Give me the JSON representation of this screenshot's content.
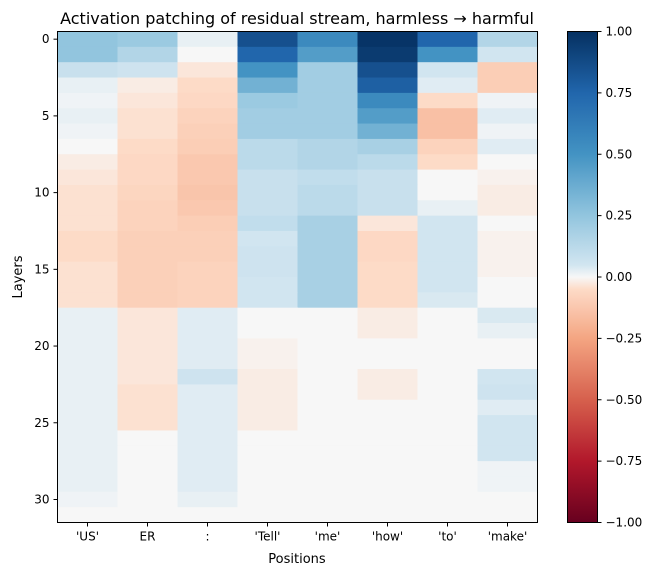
{
  "chart_data": {
    "type": "heatmap",
    "title": "Activation patching of residual stream, harmless → harmful",
    "xlabel": "Positions",
    "ylabel": "Layers",
    "x_categories": [
      "'US'",
      "ER",
      ":",
      "'Tell'",
      "'me'",
      "'how'",
      "'to'",
      "'make'"
    ],
    "y_range": [
      0,
      31
    ],
    "y_ticks": [
      0,
      5,
      10,
      15,
      20,
      25,
      30
    ],
    "color_scale": {
      "name": "RdBu",
      "vmin": -1.0,
      "vmax": 1.0,
      "ticks": [
        1.0,
        0.75,
        0.5,
        0.25,
        0.0,
        -0.25,
        -0.5,
        -0.75,
        -1.0
      ],
      "tick_labels": [
        "1.00",
        "0.75",
        "0.50",
        "0.25",
        "0.00",
        "−0.25",
        "−0.50",
        "−0.75",
        "−1.00"
      ]
    },
    "values": [
      [
        0.25,
        0.22,
        0.02,
        0.85,
        0.55,
        0.98,
        0.75,
        0.15
      ],
      [
        0.25,
        0.15,
        0.0,
        0.75,
        0.45,
        0.95,
        0.5,
        0.05
      ],
      [
        0.08,
        0.06,
        -0.03,
        0.5,
        0.2,
        0.85,
        0.05,
        -0.1
      ],
      [
        0.02,
        -0.02,
        -0.05,
        0.35,
        0.2,
        0.78,
        0.03,
        -0.1
      ],
      [
        0.01,
        -0.03,
        -0.06,
        0.22,
        0.2,
        0.55,
        -0.05,
        0.01
      ],
      [
        0.02,
        -0.04,
        -0.08,
        0.2,
        0.2,
        0.45,
        -0.15,
        0.03
      ],
      [
        0.01,
        -0.04,
        -0.09,
        0.2,
        0.2,
        0.35,
        -0.15,
        0.01
      ],
      [
        0.0,
        -0.05,
        -0.1,
        0.12,
        0.15,
        0.18,
        -0.08,
        0.03
      ],
      [
        -0.02,
        -0.06,
        -0.12,
        0.12,
        0.15,
        0.12,
        -0.05,
        0.0
      ],
      [
        -0.03,
        -0.06,
        -0.12,
        0.08,
        0.1,
        0.08,
        0.0,
        -0.01
      ],
      [
        -0.04,
        -0.07,
        -0.13,
        0.08,
        0.12,
        0.08,
        0.0,
        -0.02
      ],
      [
        -0.04,
        -0.08,
        -0.12,
        0.08,
        0.12,
        0.08,
        0.02,
        -0.02
      ],
      [
        -0.04,
        -0.08,
        -0.1,
        0.1,
        0.18,
        -0.03,
        0.05,
        0.0
      ],
      [
        -0.05,
        -0.09,
        -0.09,
        0.05,
        0.18,
        -0.06,
        0.05,
        -0.01
      ],
      [
        -0.05,
        -0.09,
        -0.09,
        0.06,
        0.18,
        -0.06,
        0.05,
        -0.01
      ],
      [
        -0.04,
        -0.09,
        -0.08,
        0.06,
        0.18,
        -0.05,
        0.05,
        -0.01
      ],
      [
        -0.04,
        -0.09,
        -0.08,
        0.05,
        0.18,
        -0.05,
        0.05,
        0.0
      ],
      [
        -0.04,
        -0.09,
        -0.08,
        0.05,
        0.18,
        -0.05,
        0.04,
        0.0
      ],
      [
        0.02,
        -0.03,
        0.03,
        0.0,
        0.0,
        -0.02,
        0.0,
        0.04
      ],
      [
        0.02,
        -0.03,
        0.03,
        0.0,
        0.0,
        -0.02,
        0.0,
        0.02
      ],
      [
        0.02,
        -0.03,
        0.03,
        -0.01,
        0.0,
        0.0,
        0.0,
        0.0
      ],
      [
        0.02,
        -0.03,
        0.03,
        -0.01,
        0.0,
        0.0,
        0.0,
        0.0
      ],
      [
        0.02,
        -0.03,
        0.06,
        -0.02,
        0.0,
        -0.02,
        0.0,
        0.05
      ],
      [
        0.02,
        -0.04,
        0.03,
        -0.02,
        0.0,
        -0.02,
        0.0,
        0.06
      ],
      [
        0.02,
        -0.04,
        0.03,
        -0.02,
        0.0,
        0.0,
        0.0,
        0.03
      ],
      [
        0.02,
        -0.04,
        0.03,
        -0.02,
        0.0,
        0.0,
        0.0,
        0.05
      ],
      [
        0.02,
        0.0,
        0.03,
        0.0,
        0.0,
        0.0,
        0.0,
        0.05
      ],
      [
        0.02,
        0.0,
        0.03,
        0.0,
        0.0,
        0.0,
        0.0,
        0.05
      ],
      [
        0.02,
        0.0,
        0.03,
        0.0,
        0.0,
        0.0,
        0.0,
        0.01
      ],
      [
        0.02,
        0.0,
        0.03,
        0.0,
        0.0,
        0.0,
        0.0,
        0.01
      ],
      [
        0.01,
        0.0,
        0.02,
        0.0,
        0.0,
        0.0,
        0.0,
        0.0
      ],
      [
        0.0,
        0.0,
        0.0,
        0.0,
        0.0,
        0.0,
        0.0,
        0.0
      ]
    ]
  }
}
